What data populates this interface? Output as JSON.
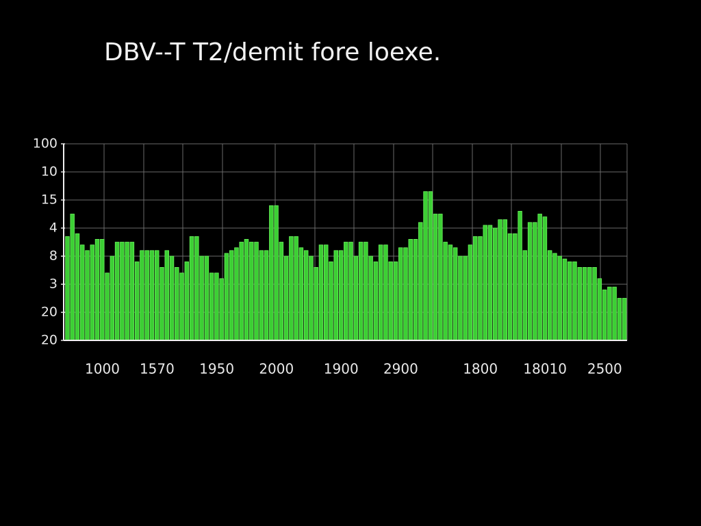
{
  "chart_data": {
    "type": "bar",
    "title": "DBV--T T2/demit fore loexe.",
    "color": "#3ccf34",
    "grid": true,
    "ylim": [
      0,
      7
    ],
    "yticks": [
      {
        "value": 0,
        "label": "20"
      },
      {
        "value": 1,
        "label": "20"
      },
      {
        "value": 2,
        "label": "3"
      },
      {
        "value": 3,
        "label": "8"
      },
      {
        "value": 4,
        "label": "4"
      },
      {
        "value": 5,
        "label": "15"
      },
      {
        "value": 6,
        "label": "10"
      },
      {
        "value": 7,
        "label": "100"
      }
    ],
    "categories": [
      null,
      null,
      null,
      null,
      null,
      null,
      null,
      "1000",
      null,
      null,
      null,
      null,
      null,
      null,
      null,
      null,
      null,
      null,
      "1570",
      null,
      null,
      null,
      null,
      null,
      null,
      null,
      null,
      null,
      null,
      null,
      "1950",
      null,
      null,
      null,
      null,
      null,
      null,
      null,
      null,
      null,
      null,
      null,
      "2000",
      null,
      null,
      null,
      null,
      null,
      null,
      null,
      null,
      null,
      null,
      null,
      null,
      "1900",
      null,
      null,
      null,
      null,
      null,
      null,
      null,
      null,
      null,
      null,
      null,
      "2900",
      null,
      null,
      null,
      null,
      null,
      null,
      null,
      null,
      null,
      null,
      null,
      null,
      null,
      null,
      null,
      "1800",
      null,
      null,
      null,
      null,
      null,
      null,
      null,
      null,
      null,
      null,
      null,
      null,
      "18010",
      null,
      null,
      null,
      null,
      null,
      null,
      null,
      null,
      null,
      null,
      null,
      "2500",
      null,
      null,
      null,
      null
    ],
    "values": [
      3.7,
      4.5,
      3.8,
      3.4,
      3.2,
      3.4,
      3.6,
      3.6,
      2.4,
      3.0,
      3.5,
      3.5,
      3.5,
      3.5,
      2.8,
      3.2,
      3.2,
      3.2,
      3.2,
      2.6,
      3.2,
      3.0,
      2.6,
      2.4,
      2.8,
      3.7,
      3.7,
      3.0,
      3.0,
      2.4,
      2.4,
      2.2,
      3.1,
      3.2,
      3.3,
      3.5,
      3.6,
      3.5,
      3.5,
      3.2,
      3.2,
      4.8,
      4.8,
      3.5,
      3.0,
      3.7,
      3.7,
      3.3,
      3.2,
      3.0,
      2.6,
      3.4,
      3.4,
      2.8,
      3.2,
      3.2,
      3.5,
      3.5,
      3.0,
      3.5,
      3.5,
      3.0,
      2.8,
      3.4,
      3.4,
      2.8,
      2.8,
      3.3,
      3.3,
      3.6,
      3.6,
      4.2,
      5.3,
      5.3,
      4.5,
      4.5,
      3.5,
      3.4,
      3.3,
      3.0,
      3.0,
      3.4,
      3.7,
      3.7,
      4.1,
      4.1,
      4.0,
      4.3,
      4.3,
      3.8,
      3.8,
      4.6,
      3.2,
      4.2,
      4.2,
      4.5,
      4.4,
      3.2,
      3.1,
      3.0,
      2.9,
      2.8,
      2.8,
      2.6,
      2.6,
      2.6,
      2.6,
      2.2,
      1.8,
      1.9,
      1.9,
      1.5,
      1.5
    ]
  }
}
